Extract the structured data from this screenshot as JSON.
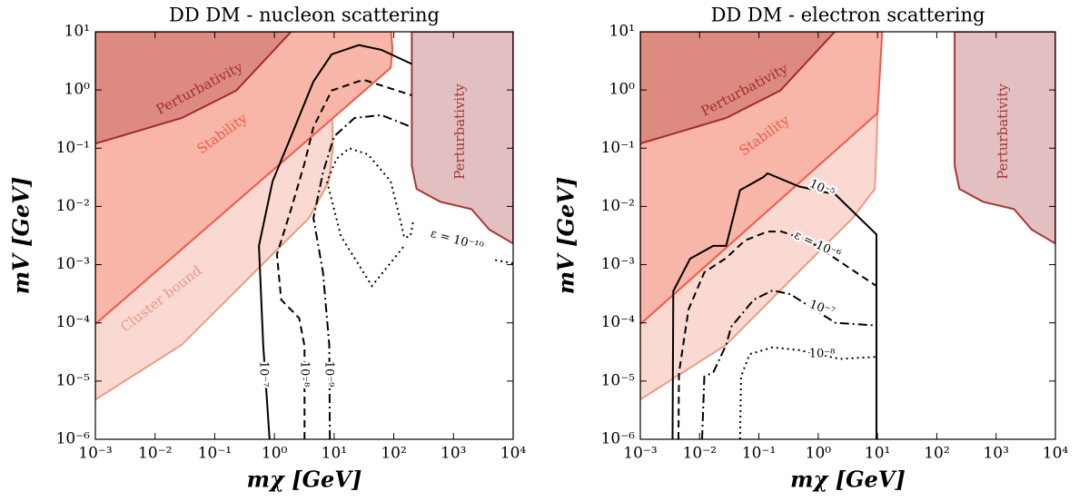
{
  "chart_data": [
    {
      "type": "line",
      "title": "DD DM - nucleon scattering",
      "xlabel": "mχ [GeV]",
      "ylabel": "mV [GeV]",
      "xscale": "log",
      "yscale": "log",
      "xlim": [
        0.001,
        10000
      ],
      "ylim": [
        1e-06,
        10
      ],
      "xticks": [
        {
          "value": 0.001,
          "label": "10⁻³"
        },
        {
          "value": 0.01,
          "label": "10⁻²"
        },
        {
          "value": 0.1,
          "label": "10⁻¹"
        },
        {
          "value": 1,
          "label": "10⁰"
        },
        {
          "value": 10,
          "label": "10¹"
        },
        {
          "value": 100,
          "label": "10²"
        },
        {
          "value": 1000,
          "label": "10³"
        },
        {
          "value": 10000,
          "label": "10⁴"
        }
      ],
      "yticks": [
        {
          "value": 1e-06,
          "label": "10⁻⁶"
        },
        {
          "value": 1e-05,
          "label": "10⁻⁵"
        },
        {
          "value": 0.0001,
          "label": "10⁻⁴"
        },
        {
          "value": 0.001,
          "label": "10⁻³"
        },
        {
          "value": 0.01,
          "label": "10⁻²"
        },
        {
          "value": 0.1,
          "label": "10⁻¹"
        },
        {
          "value": 1,
          "label": "10⁰"
        },
        {
          "value": 10,
          "label": "10¹"
        }
      ],
      "series": [
        {
          "name": "Cluster bound",
          "color": "#ee9a85",
          "fill": "#f9d9d2",
          "x": [
            0.001,
            0.028,
            0.46,
            3.8,
            8.2,
            9.5,
            9.1,
            11.5,
            0.001
          ],
          "values": [
            4.8e-06,
            4.2e-05,
            0.00074,
            0.0063,
            0.027,
            0.1,
            0.98,
            10,
            10
          ]
        },
        {
          "name": "Stability",
          "color": "#f05a48",
          "fill": "#f7b6a7",
          "x": [
            0.001,
            89,
            95,
            90,
            0.001
          ],
          "values": [
            9.5e-05,
            2.4,
            5,
            10,
            10
          ]
        },
        {
          "name": "Perturbativity",
          "color": "#a52a2a",
          "fill": "#dd8b80",
          "x": [
            0.001,
            0.028,
            0.23,
            1.9,
            0.001
          ],
          "values": [
            0.12,
            0.33,
            0.98,
            10,
            10
          ]
        },
        {
          "name": "Perturbativity",
          "color": "#a83535",
          "fill": "#e2bfc0",
          "x": [
            200,
            200,
            240,
            600,
            2000,
            4000,
            10000,
            10000
          ],
          "values": [
            10,
            0.05,
            0.02,
            0.012,
            0.009,
            0.004,
            0.0023,
            10
          ]
        },
        {
          "name": "10⁻⁷",
          "color": "#000000",
          "line_style": "solid",
          "x": [
            0.83,
            0.65,
            0.55,
            0.93,
            1.9,
            4.5,
            9.1,
            26,
            62,
            200
          ],
          "values": [
            1e-06,
            4.2e-05,
            0.0021,
            0.027,
            0.16,
            1.4,
            4.1,
            5.9,
            4.9,
            2.8
          ]
        },
        {
          "name": "10⁻⁸",
          "color": "#000000",
          "line_style": "dashed",
          "x": [
            3.2,
            3.2,
            2.6,
            1.3,
            1.1,
            1.9,
            3.2,
            4.5,
            9.1,
            31,
            200
          ],
          "values": [
            1e-06,
            4e-05,
            0.00012,
            0.00025,
            0.0015,
            0.009,
            0.055,
            0.23,
            0.98,
            1.5,
            0.81
          ]
        },
        {
          "name": "10⁻⁹",
          "color": "#000000",
          "line_style": "dashdot",
          "x": [
            8.5,
            8.3,
            6.5,
            4.5,
            6.5,
            10,
            22,
            62,
            200
          ],
          "values": [
            1e-06,
            4.2e-05,
            0.00074,
            0.0063,
            0.038,
            0.16,
            0.33,
            0.37,
            0.23
          ]
        },
        {
          "name": "ε = 10⁻¹⁰",
          "color": "#000000",
          "line_style": "dotted",
          "x": [
            210,
            190,
            150,
            126,
            89,
            37,
            18,
            11,
            7.6,
            13,
            43,
            150,
            null,
            5000,
            10000
          ],
          "values": [
            0.0053,
            0.0031,
            0.0029,
            0.0063,
            0.027,
            0.078,
            0.1,
            0.066,
            0.027,
            0.0031,
            0.00043,
            0.0021,
            null,
            0.0012,
            0.00105
          ]
        }
      ]
    },
    {
      "type": "line",
      "title": "DD DM - electron scattering",
      "xlabel": "mχ [GeV]",
      "ylabel": "mV [GeV]",
      "xscale": "log",
      "yscale": "log",
      "xlim": [
        0.001,
        10000
      ],
      "ylim": [
        1e-06,
        10
      ],
      "xticks": [
        {
          "value": 0.001,
          "label": "10⁻³"
        },
        {
          "value": 0.01,
          "label": "10⁻²"
        },
        {
          "value": 0.1,
          "label": "10⁻¹"
        },
        {
          "value": 1,
          "label": "10⁰"
        },
        {
          "value": 10,
          "label": "10¹"
        },
        {
          "value": 100,
          "label": "10²"
        },
        {
          "value": 1000,
          "label": "10³"
        },
        {
          "value": 10000,
          "label": "10⁴"
        }
      ],
      "yticks": [
        {
          "value": 1e-06,
          "label": "10⁻⁶"
        },
        {
          "value": 1e-05,
          "label": "10⁻⁵"
        },
        {
          "value": 0.0001,
          "label": "10⁻⁴"
        },
        {
          "value": 0.001,
          "label": "10⁻³"
        },
        {
          "value": 0.01,
          "label": "10⁻²"
        },
        {
          "value": 0.1,
          "label": "10⁻¹"
        },
        {
          "value": 1,
          "label": "10⁰"
        },
        {
          "value": 10,
          "label": "10¹"
        }
      ],
      "series": [
        {
          "color": "#ee9a85",
          "fill": "#f9d9d2",
          "x": [
            0.001,
            0.028,
            0.46,
            3.8,
            9,
            9.6,
            10,
            10.5,
            0.001
          ],
          "values": [
            4.8e-06,
            4.2e-05,
            0.00074,
            0.0063,
            0.02,
            0.1,
            0.4,
            10,
            10
          ]
        },
        {
          "name": "Stability",
          "color": "#f05a48",
          "fill": "#f7b6a7",
          "x": [
            0.001,
            10,
            11,
            12,
            0.001
          ],
          "values": [
            9.5e-05,
            0.4,
            2,
            10,
            10
          ]
        },
        {
          "name": "Perturbativity",
          "color": "#a52a2a",
          "fill": "#dd8b80",
          "x": [
            0.001,
            0.028,
            0.23,
            1.9,
            0.001
          ],
          "values": [
            0.12,
            0.33,
            0.98,
            10,
            10
          ]
        },
        {
          "name": "Perturbativity",
          "color": "#a83535",
          "fill": "#e2bfc0",
          "x": [
            200,
            200,
            240,
            600,
            2000,
            4000,
            10000,
            10000
          ],
          "values": [
            10,
            0.05,
            0.02,
            0.012,
            0.009,
            0.004,
            0.0023,
            10
          ]
        },
        {
          "name": "10⁻⁵",
          "color": "#000000",
          "line_style": "solid",
          "x": [
            0.0035,
            0.0036,
            0.0069,
            0.017,
            0.028,
            0.048,
            0.12,
            0.14,
            0.48,
            1.95,
            9.6,
            9.6
          ],
          "values": [
            1e-06,
            0.00035,
            0.00126,
            0.0021,
            0.0021,
            0.019,
            0.032,
            0.037,
            0.022,
            0.016,
            0.0033,
            1e-06
          ]
        },
        {
          "name": "ε = 10⁻⁶",
          "color": "#000000",
          "line_style": "dashed",
          "x": [
            0.0044,
            0.0045,
            0.0065,
            0.012,
            0.028,
            0.058,
            0.14,
            0.24,
            0.68,
            9.6,
            9.6
          ],
          "values": [
            1e-06,
            1.4e-05,
            0.00017,
            0.00074,
            0.0013,
            0.0026,
            0.0037,
            0.0037,
            0.0026,
            0.00043,
            1e-06
          ]
        },
        {
          "name": "10⁻⁷",
          "color": "#000000",
          "line_style": "dashdot",
          "x": [
            0.011,
            0.012,
            0.017,
            0.028,
            0.034,
            0.082,
            0.17,
            0.34,
            1.95,
            9.6,
            9.6
          ],
          "values": [
            1e-06,
            1.2e-05,
            1.4e-05,
            4.2e-05,
            8.5e-05,
            0.00025,
            0.00036,
            0.00031,
            0.0001,
            9e-05,
            1e-06
          ]
        },
        {
          "name": "10⁻⁸",
          "color": "#000000",
          "line_style": "dotted",
          "x": [
            0.048,
            0.05,
            0.07,
            0.17,
            0.48,
            2.3,
            9.6,
            9.6
          ],
          "values": [
            1e-06,
            1.2e-05,
            2.9e-05,
            3.8e-05,
            3.4e-05,
            2.4e-05,
            2.6e-05,
            1e-06
          ]
        }
      ]
    }
  ]
}
